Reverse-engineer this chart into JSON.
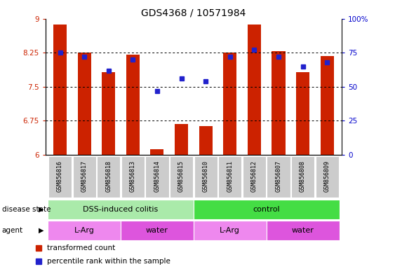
{
  "title": "GDS4368 / 10571984",
  "samples": [
    "GSM856816",
    "GSM856817",
    "GSM856818",
    "GSM856813",
    "GSM856814",
    "GSM856815",
    "GSM856810",
    "GSM856811",
    "GSM856812",
    "GSM856807",
    "GSM856808",
    "GSM856809"
  ],
  "bar_values": [
    8.88,
    8.26,
    7.82,
    8.21,
    6.12,
    6.67,
    6.63,
    8.25,
    8.88,
    8.28,
    7.82,
    8.18
  ],
  "percentile_values": [
    75,
    72,
    62,
    70,
    47,
    56,
    54,
    72,
    77,
    72,
    65,
    68
  ],
  "bar_color": "#cc2200",
  "percentile_color": "#2222cc",
  "bar_bottom": 6.0,
  "ylim_left": [
    6.0,
    9.0
  ],
  "ylim_right": [
    0,
    100
  ],
  "yticks_left": [
    6.0,
    6.75,
    7.5,
    8.25,
    9.0
  ],
  "ytick_labels_left": [
    "6",
    "6.75",
    "7.5",
    "8.25",
    "9"
  ],
  "yticks_right": [
    0,
    25,
    50,
    75,
    100
  ],
  "ytick_labels_right": [
    "0",
    "25",
    "50",
    "75",
    "100%"
  ],
  "hline_values": [
    6.75,
    7.5,
    8.25
  ],
  "disease_state_groups": [
    {
      "label": "DSS-induced colitis",
      "start": 0,
      "end": 5,
      "color": "#aaeaaa"
    },
    {
      "label": "control",
      "start": 6,
      "end": 11,
      "color": "#44dd44"
    }
  ],
  "agent_groups": [
    {
      "label": "L-Arg",
      "start": 0,
      "end": 2,
      "color": "#ee88ee"
    },
    {
      "label": "water",
      "start": 3,
      "end": 5,
      "color": "#dd55dd"
    },
    {
      "label": "L-Arg",
      "start": 6,
      "end": 8,
      "color": "#ee88ee"
    },
    {
      "label": "water",
      "start": 9,
      "end": 11,
      "color": "#dd55dd"
    }
  ],
  "legend_bar_label": "transformed count",
  "legend_pct_label": "percentile rank within the sample",
  "background_color": "#ffffff"
}
